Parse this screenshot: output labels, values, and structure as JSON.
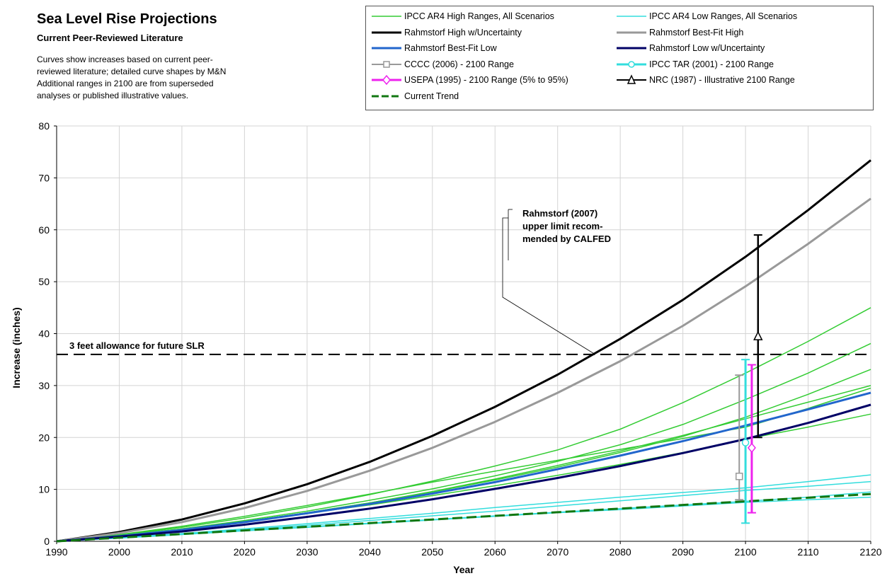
{
  "title": "Sea Level Rise Projections",
  "subtitle": "Current Peer-Reviewed Literature",
  "note": [
    "Curves show increases based on current peer-",
    "reviewed literature; detailed curve shapes  by M&N",
    "Additional ranges in 2100 are from superseded",
    "analyses or published illustrative values."
  ],
  "legend": [
    {
      "label": "IPCC AR4 High Ranges, All Scenarios",
      "color": "#33cc33",
      "width": 1.5,
      "marker": "none",
      "dash": false
    },
    {
      "label": "IPCC AR4 Low Ranges, All Scenarios",
      "color": "#33dddd",
      "width": 1.5,
      "marker": "none",
      "dash": false
    },
    {
      "label": "Rahmstorf High w/Uncertainty",
      "color": "#000000",
      "width": 3,
      "marker": "none",
      "dash": false
    },
    {
      "label": "Rahmstorf Best-Fit High",
      "color": "#999999",
      "width": 3,
      "marker": "none",
      "dash": false
    },
    {
      "label": "Rahmstorf Best-Fit Low",
      "color": "#2266cc",
      "width": 3,
      "marker": "none",
      "dash": false
    },
    {
      "label": "Rahmstorf Low w/Uncertainty",
      "color": "#000066",
      "width": 3,
      "marker": "none",
      "dash": false
    },
    {
      "label": "CCCC (2006) - 2100 Range",
      "color": "#999999",
      "width": 2,
      "marker": "square",
      "dash": false
    },
    {
      "label": "IPCC TAR (2001) - 2100 Range",
      "color": "#33dddd",
      "width": 3,
      "marker": "circle",
      "dash": false
    },
    {
      "label": "USEPA (1995) - 2100 Range (5% to 95%)",
      "color": "#ee22ee",
      "width": 3,
      "marker": "diamond",
      "dash": false
    },
    {
      "label": "NRC (1987) - Illustrative 2100 Range",
      "color": "#000000",
      "width": 2,
      "marker": "triangle",
      "dash": false
    },
    {
      "label": "Current Trend",
      "color": "#117711",
      "width": 3,
      "marker": "none",
      "dash": true
    }
  ],
  "chart_data": {
    "type": "line",
    "xlabel": "Year",
    "ylabel": "Increase (inches)",
    "xlim": [
      1990,
      2120
    ],
    "ylim": [
      0,
      80
    ],
    "xticks": [
      1990,
      2000,
      2010,
      2020,
      2030,
      2040,
      2050,
      2060,
      2070,
      2080,
      2090,
      2100,
      2110,
      2120
    ],
    "yticks": [
      0,
      10,
      20,
      30,
      40,
      50,
      60,
      70,
      80
    ],
    "grid": true,
    "x": [
      1990,
      2000,
      2010,
      2020,
      2030,
      2040,
      2050,
      2060,
      2070,
      2080,
      2090,
      2100,
      2110,
      2120
    ],
    "series": [
      {
        "name": "Rahmstorf High w/Uncertainty",
        "color": "#000000",
        "width": 3,
        "values": [
          0,
          1.8,
          4.2,
          7.3,
          11,
          15.3,
          20.3,
          25.9,
          32.1,
          39,
          46.5,
          54.8,
          63.8,
          73.4
        ]
      },
      {
        "name": "Rahmstorf Best-Fit High",
        "color": "#999999",
        "width": 3,
        "values": [
          0,
          1.6,
          3.7,
          6.4,
          9.7,
          13.6,
          18,
          23,
          28.6,
          34.7,
          41.5,
          49.1,
          57.3,
          66
        ]
      },
      {
        "name": "Rahmstorf Best-Fit Low",
        "color": "#2266cc",
        "width": 3,
        "values": [
          0,
          1,
          2.2,
          3.7,
          5.4,
          7.2,
          9.2,
          11.4,
          13.9,
          16.5,
          19.3,
          22.3,
          25.4,
          28.6
        ]
      },
      {
        "name": "Rahmstorf Low w/Uncertainty",
        "color": "#000066",
        "width": 3,
        "values": [
          0,
          0.9,
          1.9,
          3.2,
          4.7,
          6.3,
          8.1,
          10.1,
          12.2,
          14.5,
          17,
          19.7,
          22.8,
          26.3
        ]
      },
      {
        "name": "IPCC AR4 High Ranges, All Scenarios",
        "color": "#33cc33",
        "width": 1.5,
        "values": [
          0,
          1.2,
          2.7,
          4.5,
          6.6,
          9,
          11.6,
          14.5,
          17.6,
          21.6,
          26.7,
          32.4,
          38.5,
          45
        ]
      },
      {
        "name": "IPCC AR4 High Ranges, All Scenarios",
        "color": "#33cc33",
        "width": 1.5,
        "values": [
          0,
          1.1,
          2.4,
          4,
          5.8,
          7.9,
          10.1,
          12.6,
          15.4,
          18.6,
          22.5,
          27.3,
          32.4,
          38.1
        ]
      },
      {
        "name": "IPCC AR4 High Ranges, All Scenarios",
        "color": "#33cc33",
        "width": 1.5,
        "values": [
          0,
          1.1,
          2.3,
          3.8,
          5.5,
          7.4,
          9.5,
          11.8,
          14.3,
          17.1,
          20.2,
          23.9,
          28.3,
          33.1
        ]
      },
      {
        "name": "IPCC AR4 High Ranges, All Scenarios",
        "color": "#33cc33",
        "width": 1.5,
        "values": [
          0,
          1.1,
          2.3,
          3.8,
          5.5,
          7.4,
          9.6,
          12,
          14.6,
          17.4,
          20.4,
          23.6,
          26.8,
          30
        ]
      },
      {
        "name": "IPCC AR4 High Ranges, All Scenarios",
        "color": "#33cc33",
        "width": 1.5,
        "values": [
          0,
          1.3,
          2.9,
          4.8,
          6.9,
          9.1,
          11.4,
          13.5,
          15.6,
          17.7,
          19.8,
          22,
          25.6,
          29.5
        ]
      },
      {
        "name": "IPCC AR4 High Ranges, All Scenarios",
        "color": "#33cc33",
        "width": 1.5,
        "values": [
          0,
          1.1,
          2.4,
          3.8,
          5.4,
          7,
          8.8,
          10.7,
          12.7,
          14.8,
          17.1,
          19.7,
          22,
          24.5
        ]
      },
      {
        "name": "IPCC AR4 Low Ranges, All Scenarios",
        "color": "#33dddd",
        "width": 1.5,
        "values": [
          0,
          0.7,
          1.5,
          2.4,
          3.4,
          4.4,
          5.4,
          6.5,
          7.5,
          8.5,
          9.4,
          10.3,
          11.5,
          12.8
        ]
      },
      {
        "name": "IPCC AR4 Low Ranges, All Scenarios",
        "color": "#33dddd",
        "width": 1.5,
        "values": [
          0,
          0.7,
          1.4,
          2.2,
          3.1,
          4,
          4.9,
          5.8,
          6.8,
          7.8,
          8.8,
          9.8,
          10.6,
          11.5
        ]
      },
      {
        "name": "IPCC AR4 Low Ranges, All Scenarios",
        "color": "#33dddd",
        "width": 1.5,
        "values": [
          0,
          0.7,
          1.4,
          2.1,
          2.8,
          3.5,
          4.2,
          4.9,
          5.6,
          6.3,
          7,
          7.7,
          8.5,
          9.5
        ]
      },
      {
        "name": "IPCC AR4 Low Ranges, All Scenarios",
        "color": "#33dddd",
        "width": 1.5,
        "values": [
          0,
          0.6,
          1.3,
          2,
          2.7,
          3.4,
          4.1,
          4.8,
          5.5,
          6.1,
          6.8,
          7.5,
          8,
          8.5
        ]
      },
      {
        "name": "Current Trend",
        "color": "#117711",
        "width": 3,
        "dash": true,
        "values": [
          0,
          0.7,
          1.4,
          2.1,
          2.8,
          3.5,
          4.2,
          4.9,
          5.6,
          6.3,
          7,
          7.7,
          8.4,
          9.1
        ]
      }
    ],
    "ranges_2100": [
      {
        "name": "CCCC (2006) - 2100 Range",
        "x": 2099,
        "low": 8,
        "high": 32,
        "mid": 12.5,
        "color": "#999999",
        "marker": "square"
      },
      {
        "name": "IPCC TAR (2001) - 2100 Range",
        "x": 2100,
        "low": 3.5,
        "high": 35,
        "mid": 19,
        "color": "#33dddd",
        "marker": "circle"
      },
      {
        "name": "USEPA (1995) - 2100 Range (5% to 95%)",
        "x": 2101,
        "low": 5.5,
        "high": 34,
        "mid": 18,
        "color": "#ee22ee",
        "marker": "diamond"
      },
      {
        "name": "NRC (1987) - Illustrative 2100 Range",
        "x": 2102,
        "low": 20,
        "high": 59,
        "mid": 39.5,
        "color": "#000000",
        "marker": "triangle"
      }
    ],
    "reference_line": {
      "y": 36,
      "label": "3 feet allowance for future SLR"
    },
    "annotation": {
      "lines": [
        "Rahmstorf (2007)",
        "upper limit recom-",
        "mended by CALFED"
      ],
      "x": 2076,
      "y": 36
    }
  }
}
